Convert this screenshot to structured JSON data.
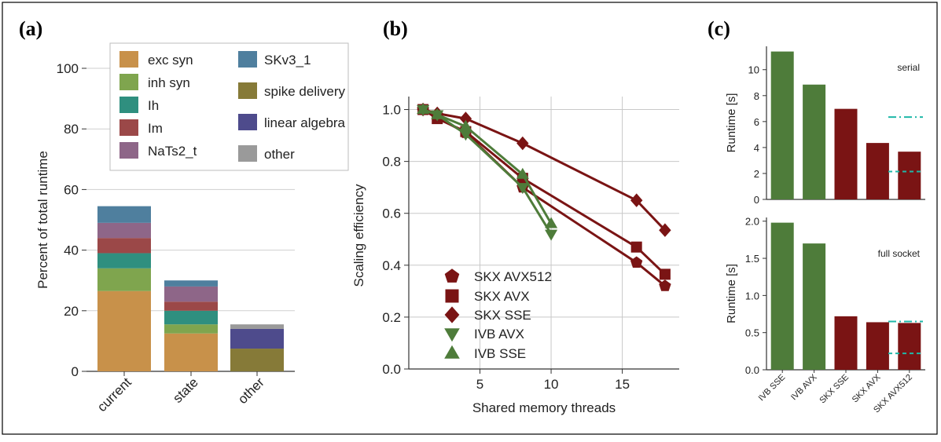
{
  "panel_labels": [
    "(a)",
    "(b)",
    "(c)"
  ],
  "colors": {
    "exc_syn": "#c8914a",
    "inh_syn": "#7fa54e",
    "Ih": "#2f8f7f",
    "Im": "#9b4848",
    "NaTs2_t": "#8e6688",
    "SKv3_1": "#4f7f9e",
    "spike_delivery": "#867a38",
    "linear_algebra": "#4e4b8c",
    "other": "#9a9a9a",
    "ivb": "#4e7c3a",
    "skx": "#7a1414",
    "reference": "#1fb8a8"
  },
  "chart_data": [
    {
      "panel": "(a)",
      "type": "bar",
      "stacked": true,
      "categories": [
        "current",
        "state",
        "other"
      ],
      "ylabel": "Percent of total runtime",
      "ylim": [
        0,
        100
      ],
      "yticks": [
        "0",
        "20",
        "40",
        "60",
        "80",
        "100"
      ],
      "legend_position": "top-right",
      "series": [
        {
          "name": "exc syn",
          "color_key": "exc_syn",
          "values": [
            26.5,
            12.5,
            0
          ]
        },
        {
          "name": "inh syn",
          "color_key": "inh_syn",
          "values": [
            7.5,
            3,
            0
          ]
        },
        {
          "name": "Ih",
          "color_key": "Ih",
          "values": [
            5,
            4.5,
            0
          ]
        },
        {
          "name": "Im",
          "color_key": "Im",
          "values": [
            5,
            3,
            0
          ]
        },
        {
          "name": "NaTs2_t",
          "color_key": "NaTs2_t",
          "values": [
            5,
            5,
            0
          ]
        },
        {
          "name": "SKv3_1",
          "color_key": "SKv3_1",
          "values": [
            5.5,
            2,
            0
          ]
        },
        {
          "name": "spike delivery",
          "color_key": "spike_delivery",
          "values": [
            0,
            0,
            7.5
          ]
        },
        {
          "name": "linear algebra",
          "color_key": "linear_algebra",
          "values": [
            0,
            0,
            6.5
          ]
        },
        {
          "name": "other",
          "color_key": "other",
          "values": [
            0,
            0,
            1.5
          ]
        }
      ]
    },
    {
      "panel": "(b)",
      "type": "line",
      "xlabel": "Shared memory threads",
      "ylabel": "Scaling efficiency",
      "xlim": [
        0,
        19
      ],
      "ylim": [
        0,
        1.05
      ],
      "xticks": [
        "5",
        "10",
        "15"
      ],
      "yticks": [
        "0.0",
        "0.2",
        "0.4",
        "0.6",
        "0.8",
        "1.0"
      ],
      "grid": true,
      "legend_position": "bottom-left",
      "series": [
        {
          "name": "SKX AVX512",
          "marker": "pentagon",
          "color_key": "skx",
          "x": [
            1,
            2,
            4,
            8,
            16,
            18
          ],
          "y": [
            1.0,
            0.97,
            0.91,
            0.7,
            0.41,
            0.32
          ]
        },
        {
          "name": "SKX AVX",
          "marker": "square",
          "color_key": "skx",
          "x": [
            1,
            2,
            4,
            8,
            16,
            18
          ],
          "y": [
            1.0,
            0.965,
            0.915,
            0.735,
            0.47,
            0.365
          ]
        },
        {
          "name": "SKX SSE",
          "marker": "diamond",
          "color_key": "skx",
          "x": [
            1,
            2,
            4,
            8,
            16,
            18
          ],
          "y": [
            1.0,
            0.985,
            0.965,
            0.87,
            0.65,
            0.535
          ]
        },
        {
          "name": "IVB AVX",
          "marker": "triangle-down",
          "color_key": "ivb",
          "x": [
            1,
            2,
            4,
            8,
            10
          ],
          "y": [
            1.0,
            0.98,
            0.905,
            0.7,
            0.52
          ]
        },
        {
          "name": "IVB SSE",
          "marker": "triangle-up",
          "color_key": "ivb",
          "x": [
            1,
            2,
            4,
            8,
            10
          ],
          "y": [
            1.0,
            0.98,
            0.935,
            0.75,
            0.56
          ]
        }
      ]
    },
    {
      "panel": "(c) top",
      "type": "bar",
      "annotation": "serial",
      "ylabel": "Runtime [s]",
      "ylim": [
        0,
        11.8
      ],
      "yticks": [
        "0",
        "2",
        "4",
        "6",
        "8",
        "10"
      ],
      "categories": [
        "IVB SSE",
        "IVB AVX",
        "SKX SSE",
        "SKX AVX",
        "SKX AVX512"
      ],
      "values": [
        11.4,
        8.85,
        6.98,
        4.35,
        3.68
      ],
      "bar_color_keys": [
        "ivb",
        "ivb",
        "skx",
        "skx",
        "skx"
      ],
      "reference_lines": [
        6.35,
        2.15
      ]
    },
    {
      "panel": "(c) bottom",
      "type": "bar",
      "annotation": "full socket",
      "ylabel": "Runtime [s]",
      "ylim": [
        0,
        2.05
      ],
      "yticks": [
        "0.0",
        "0.5",
        "1.0",
        "1.5",
        "2.0"
      ],
      "categories": [
        "IVB SSE",
        "IVB AVX",
        "SKX SSE",
        "SKX AVX",
        "SKX AVX512"
      ],
      "values": [
        1.98,
        1.7,
        0.72,
        0.64,
        0.63
      ],
      "bar_color_keys": [
        "ivb",
        "ivb",
        "skx",
        "skx",
        "skx"
      ],
      "reference_lines": [
        0.65,
        0.22
      ]
    }
  ]
}
